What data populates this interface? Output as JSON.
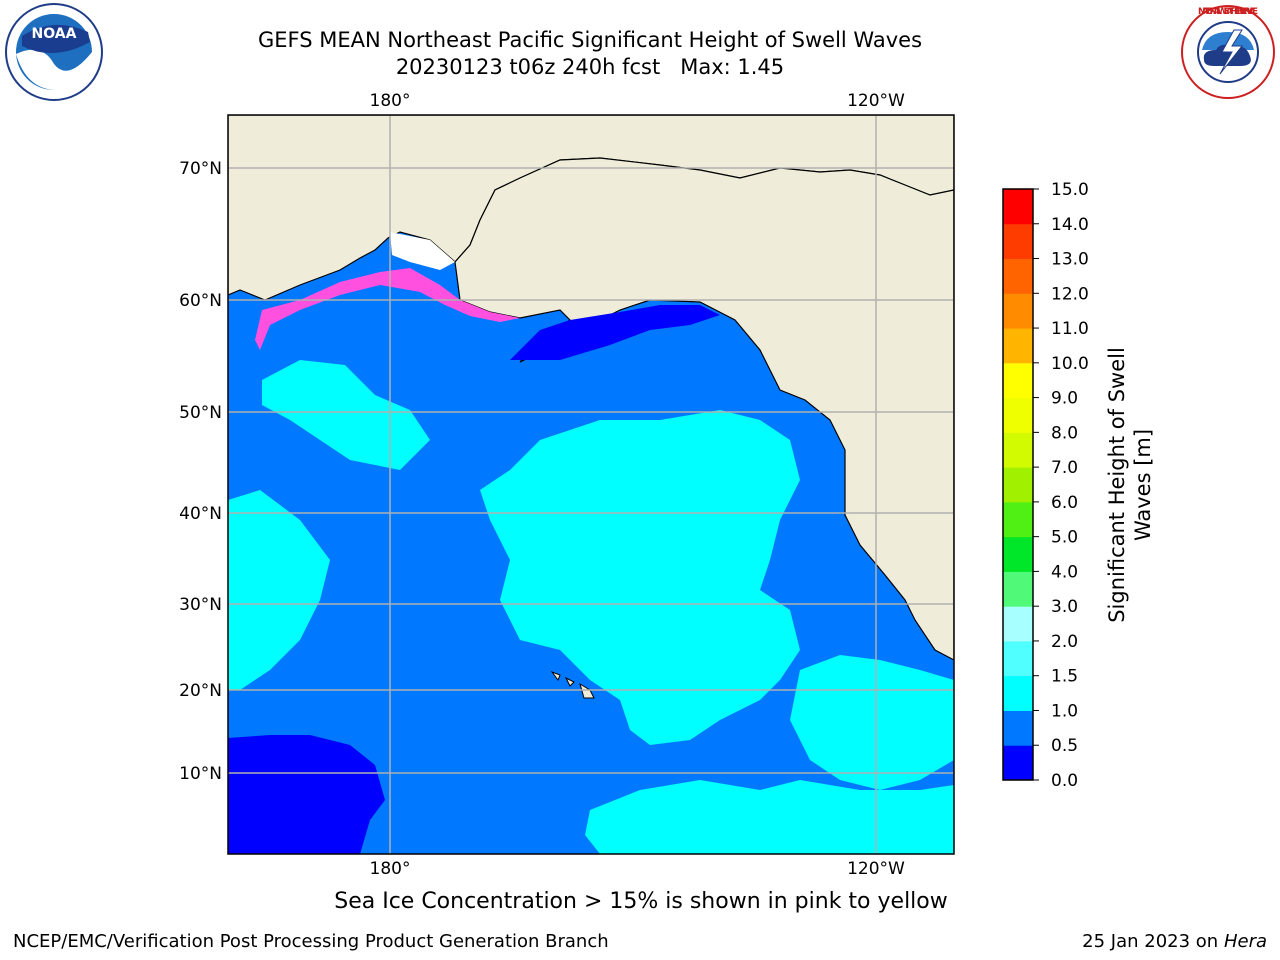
{
  "header": {
    "title": "GEFS MEAN Northeast Pacific Significant Height of Swell Waves",
    "subtitle": "20230123 t06z 240h fcst   Max: 1.45"
  },
  "logos": {
    "left": {
      "icon": "noaa-logo-icon",
      "text": "NOAA"
    },
    "right": {
      "icon": "national-weather-service-logo-icon",
      "text": "NATIONAL WEATHER SERVICE"
    }
  },
  "map": {
    "lon_labels_top": [
      "180°",
      "120°W"
    ],
    "lon_labels_bottom": [
      "180°",
      "120°W"
    ],
    "lat_labels": [
      "70°N",
      "60°N",
      "50°N",
      "40°N",
      "30°N",
      "20°N",
      "10°N"
    ],
    "colors": {
      "land": "#efedda",
      "ice": "#ffffff",
      "grid": "#b0b0b0",
      "coast": "#000000"
    }
  },
  "colorbar": {
    "label_line1": "Significant Height of Swell",
    "label_line2": "Waves [m]",
    "ticks": [
      "0.0",
      "0.5",
      "1.0",
      "1.5",
      "2.0",
      "3.0",
      "4.0",
      "5.0",
      "6.0",
      "7.0",
      "8.0",
      "9.0",
      "10.0",
      "11.0",
      "12.0",
      "13.0",
      "14.0",
      "15.0"
    ],
    "colors": [
      "#0000ff",
      "#0078ff",
      "#00ffff",
      "#50ffff",
      "#a8ffff",
      "#50fa78",
      "#00e628",
      "#50f014",
      "#a0f000",
      "#d2fa00",
      "#f0ff00",
      "#ffff00",
      "#ffb400",
      "#ff8c00",
      "#ff6400",
      "#ff3c00",
      "#ff0000"
    ]
  },
  "note": "Sea Ice Concentration > 15% is shown in pink to yellow",
  "footer": {
    "left": "NCEP/EMC/Verification Post Processing Product Generation Branch",
    "right_prefix": "25 Jan 2023 on ",
    "right_italic": "Hera"
  }
}
